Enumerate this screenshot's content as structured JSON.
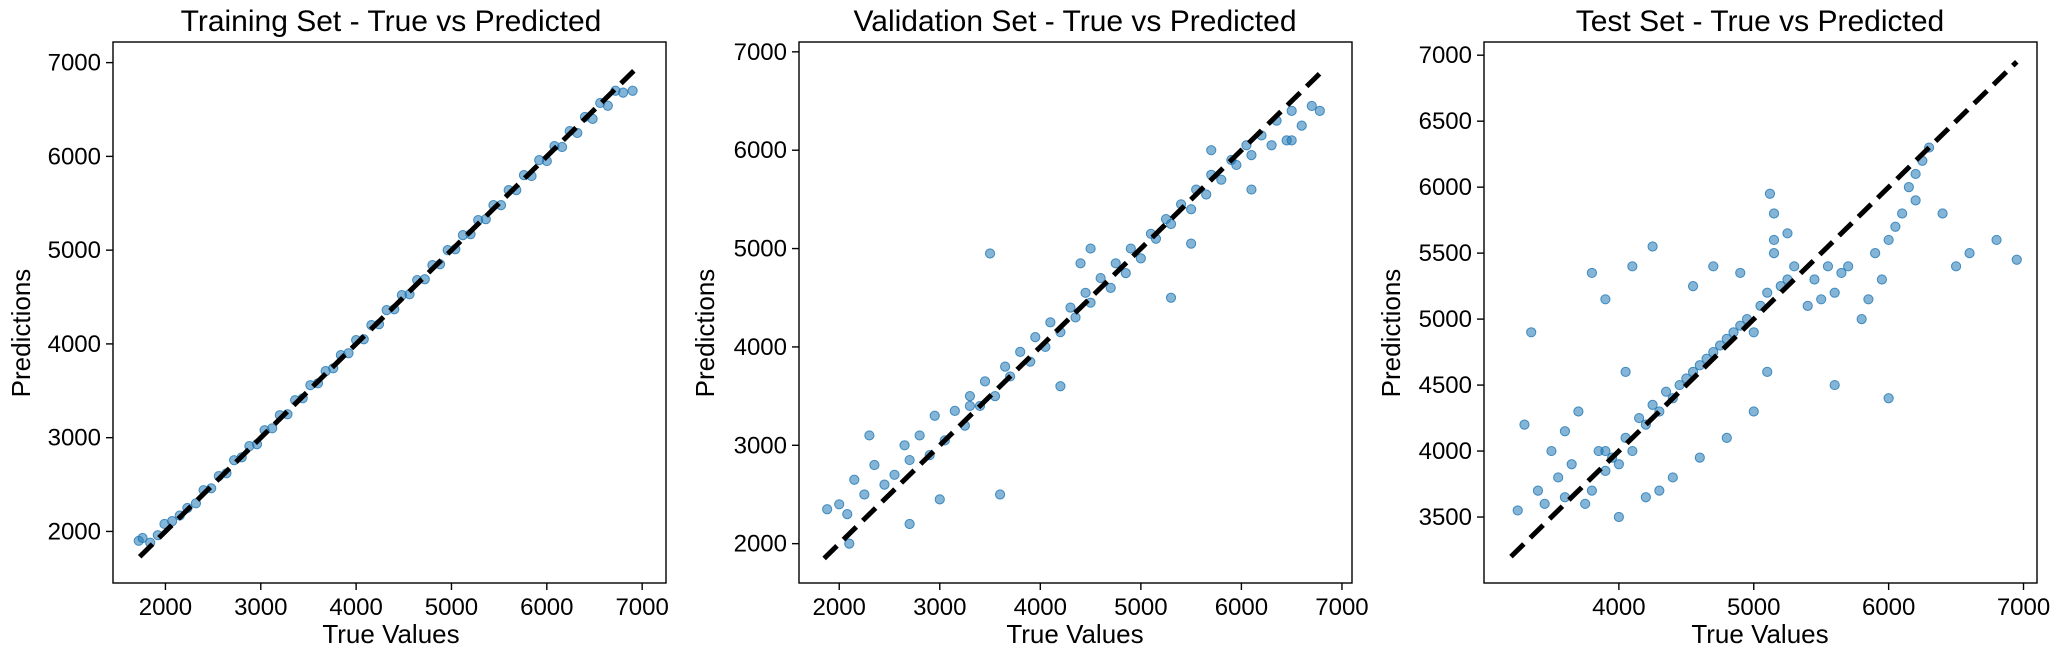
{
  "figure": {
    "panel_ids": [
      "train",
      "val",
      "test"
    ]
  },
  "chart_data": [
    {
      "id": "train",
      "type": "scatter",
      "title": "Training Set - True vs Predicted",
      "xlabel": "True Values",
      "ylabel": "Predictions",
      "xlim": [
        1450,
        7250
      ],
      "ylim": [
        1450,
        7220
      ],
      "xticks": [
        2000,
        3000,
        4000,
        5000,
        6000,
        7000
      ],
      "yticks": [
        2000,
        3000,
        4000,
        5000,
        6000,
        7000
      ],
      "point_color": "#1f77b4",
      "point_alpha": 0.55,
      "reference_line": {
        "x": [
          1730,
          6950
        ],
        "y": [
          1730,
          6950
        ],
        "color": "#000000",
        "style": "dashed"
      },
      "series": [
        {
          "x": [
            1720,
            1760,
            1840,
            1920,
            1990,
            2070,
            2150,
            2230,
            2320,
            2400,
            2480,
            2560,
            2640,
            2720,
            2800,
            2880,
            2960,
            3040,
            3120,
            3200,
            3280,
            3360,
            3440,
            3520,
            3600,
            3680,
            3760,
            3840,
            3920,
            4000,
            4080,
            4160,
            4240,
            4320,
            4400,
            4480,
            4560,
            4640,
            4720,
            4800,
            4880,
            4960,
            5040,
            5120,
            5200,
            5280,
            5360,
            5440,
            5520,
            5600,
            5680,
            5760,
            5840,
            5920,
            6000,
            6080,
            6160,
            6240,
            6320,
            6400,
            6480,
            6560,
            6640,
            6720,
            6800,
            6900
          ],
          "y": [
            1900,
            1930,
            1880,
            1960,
            2080,
            2110,
            2170,
            2250,
            2300,
            2440,
            2460,
            2590,
            2620,
            2760,
            2790,
            2910,
            2930,
            3080,
            3100,
            3240,
            3250,
            3400,
            3420,
            3560,
            3580,
            3710,
            3740,
            3880,
            3900,
            4040,
            4050,
            4200,
            4210,
            4360,
            4370,
            4520,
            4530,
            4680,
            4690,
            4840,
            4850,
            5000,
            5010,
            5160,
            5170,
            5320,
            5330,
            5480,
            5480,
            5640,
            5640,
            5800,
            5790,
            5960,
            5950,
            6110,
            6100,
            6270,
            6250,
            6420,
            6400,
            6570,
            6540,
            6700,
            6680,
            6700
          ]
        }
      ]
    },
    {
      "id": "val",
      "type": "scatter",
      "title": "Validation Set - True vs Predicted",
      "xlabel": "True Values",
      "ylabel": "Predictions",
      "xlim": [
        1600,
        7100
      ],
      "ylim": [
        1600,
        7100
      ],
      "xticks": [
        2000,
        3000,
        4000,
        5000,
        6000,
        7000
      ],
      "yticks": [
        2000,
        3000,
        4000,
        5000,
        6000,
        7000
      ],
      "point_color": "#1f77b4",
      "point_alpha": 0.55,
      "reference_line": {
        "x": [
          1850,
          6800
        ],
        "y": [
          1850,
          6800
        ],
        "color": "#000000",
        "style": "dashed"
      },
      "series": [
        {
          "x": [
            1880,
            2000,
            2080,
            2150,
            2250,
            2350,
            2450,
            2550,
            2650,
            2700,
            2800,
            2900,
            2950,
            3050,
            3150,
            3250,
            3300,
            3400,
            3450,
            3550,
            3650,
            3700,
            3800,
            3900,
            3950,
            4050,
            4100,
            4200,
            4300,
            4350,
            4450,
            4500,
            4600,
            4700,
            4750,
            4850,
            4900,
            5000,
            5100,
            5150,
            5250,
            5300,
            5400,
            5500,
            5550,
            5650,
            5700,
            5800,
            5900,
            5950,
            6050,
            6100,
            6200,
            6300,
            6350,
            6450,
            6500,
            6600,
            6700,
            6780,
            2100,
            2300,
            2700,
            3000,
            3300,
            3500,
            4200,
            4500,
            5300,
            5500,
            6100,
            6500,
            3600,
            4400,
            5700
          ],
          "y": [
            2350,
            2400,
            2300,
            2650,
            2500,
            2800,
            2600,
            2700,
            3000,
            2850,
            3100,
            2900,
            3300,
            3050,
            3350,
            3200,
            3500,
            3400,
            3650,
            3500,
            3800,
            3700,
            3950,
            3850,
            4100,
            4000,
            4250,
            4150,
            4400,
            4300,
            4550,
            4450,
            4700,
            4600,
            4850,
            4750,
            5000,
            4900,
            5150,
            5100,
            5300,
            5250,
            5450,
            5400,
            5600,
            5550,
            5750,
            5700,
            5900,
            5850,
            6050,
            5950,
            6150,
            6050,
            6300,
            6100,
            6400,
            6250,
            6450,
            6400,
            2000,
            3100,
            2200,
            2450,
            3400,
            4950,
            3600,
            5000,
            4500,
            5050,
            5600,
            6100,
            2500,
            4850,
            6000
          ]
        }
      ]
    },
    {
      "id": "test",
      "type": "scatter",
      "title": "Test Set - True vs Predicted",
      "xlabel": "True Values",
      "ylabel": "Predictions",
      "xlim": [
        3000,
        7100
      ],
      "ylim": [
        3000,
        7100
      ],
      "xticks": [
        4000,
        5000,
        6000,
        7000
      ],
      "yticks": [
        3500,
        4000,
        4500,
        5000,
        5500,
        6000,
        6500,
        7000
      ],
      "point_color": "#1f77b4",
      "point_alpha": 0.55,
      "reference_line": {
        "x": [
          3200,
          6950
        ],
        "y": [
          3200,
          6950
        ],
        "color": "#000000",
        "style": "dashed"
      },
      "series": [
        {
          "x": [
            3250,
            3300,
            3400,
            3450,
            3500,
            3550,
            3600,
            3650,
            3700,
            3750,
            3800,
            3850,
            3900,
            3950,
            4000,
            4050,
            4100,
            4150,
            4200,
            4250,
            4300,
            4350,
            4400,
            4450,
            4500,
            4550,
            4600,
            4650,
            4700,
            4750,
            4800,
            4850,
            4900,
            4950,
            5000,
            5050,
            5100,
            5150,
            5150,
            5120,
            5200,
            5250,
            5300,
            5400,
            5450,
            5500,
            5550,
            5600,
            5650,
            5700,
            5800,
            5850,
            5900,
            5950,
            6000,
            6050,
            6100,
            6150,
            6200,
            6250,
            6300,
            6400,
            6500,
            6600,
            6800,
            6950,
            3350,
            3600,
            3900,
            4000,
            4200,
            4300,
            4400,
            4600,
            4800,
            5000,
            5100,
            4100,
            4700,
            4900,
            3800,
            4250,
            4550,
            5150,
            5250,
            5600,
            6000,
            6200,
            3900,
            4050
          ],
          "y": [
            3550,
            4200,
            3700,
            3600,
            4000,
            3800,
            3650,
            3900,
            4300,
            3600,
            3700,
            4000,
            3850,
            3950,
            3900,
            4100,
            4000,
            4250,
            4200,
            4350,
            4300,
            4450,
            4400,
            4500,
            4550,
            4600,
            4650,
            4700,
            4750,
            4800,
            4850,
            4900,
            4950,
            5000,
            4900,
            5100,
            5200,
            5500,
            5800,
            5950,
            5250,
            5300,
            5400,
            5100,
            5300,
            5150,
            5400,
            5200,
            5350,
            5400,
            5000,
            5150,
            5500,
            5300,
            5600,
            5700,
            5800,
            6000,
            6100,
            6200,
            6300,
            5800,
            5400,
            5500,
            5600,
            5450,
            4900,
            4150,
            4000,
            3500,
            3650,
            3700,
            3800,
            3950,
            4100,
            4300,
            4600,
            5400,
            5400,
            5350,
            5350,
            5550,
            5250,
            5600,
            5650,
            4500,
            4400,
            5900,
            5150,
            4600
          ]
        }
      ]
    }
  ]
}
